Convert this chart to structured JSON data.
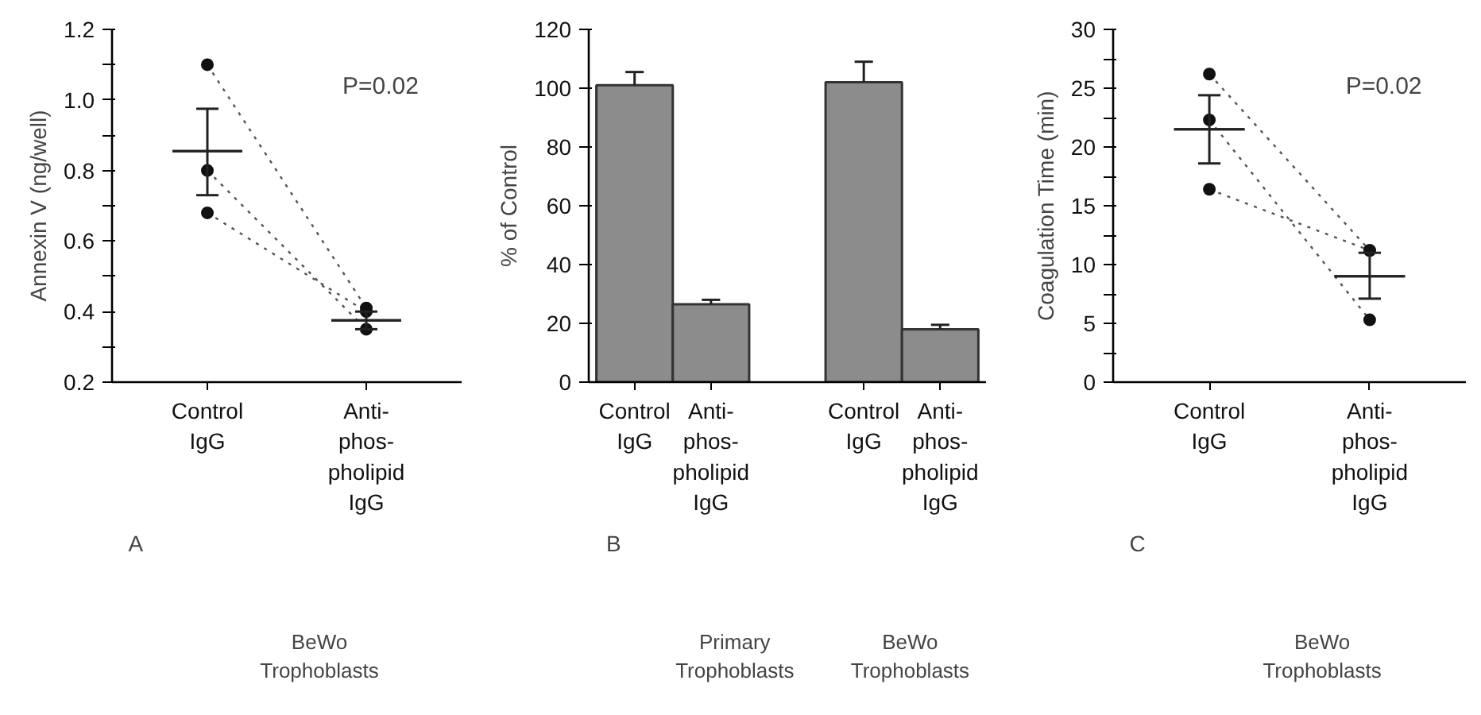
{
  "chart_data": [
    {
      "type": "line",
      "ylabel": "Annexin V (ng/well)",
      "categories": [
        "Control\nIgG",
        "Anti-\nphos-\npholipid\nIgG"
      ],
      "ylim": [
        0.2,
        1.2
      ],
      "yticks": [
        {
          "value": 0.2,
          "label": "0.2"
        },
        {
          "value": 0.3,
          "label": null
        },
        {
          "value": 0.4,
          "label": "0.4"
        },
        {
          "value": 0.5,
          "label": null
        },
        {
          "value": 0.6,
          "label": "0.6"
        },
        {
          "value": 0.7,
          "label": null
        },
        {
          "value": 0.8,
          "label": "0.8"
        },
        {
          "value": 0.9,
          "label": null
        },
        {
          "value": 1.0,
          "label": "1.0"
        },
        {
          "value": 1.1,
          "label": null
        },
        {
          "value": 1.2,
          "label": "1.2"
        }
      ],
      "marker": "circle",
      "line_style": "dotted",
      "grid": false,
      "series": [
        {
          "color": "#555555",
          "values": [
            1.1,
            0.41
          ]
        },
        {
          "color": "#555555",
          "values": [
            0.8,
            0.35
          ]
        },
        {
          "color": "#555555",
          "values": [
            0.68,
            0.4
          ]
        },
        {
          "type": "box",
          "color": "#222222",
          "boxes": [
            {
              "low": 0.73,
              "q1": 0.855,
              "median": 0.855,
              "q3": 0.855,
              "high": 0.975
            },
            {
              "low": 0.35,
              "q1": 0.375,
              "median": 0.375,
              "q3": 0.375,
              "high": 0.4
            }
          ]
        }
      ],
      "annotations": [
        "A",
        "P=0.02",
        "BeWo\nTrophoblasts"
      ]
    },
    {
      "type": "bar",
      "ylabel": "% of Control",
      "categories": [
        "Control\nIgG",
        "Anti-\nphos-\npholipid\nIgG",
        null,
        "Control\nIgG",
        "Anti-\nphos-\npholipid\nIgG"
      ],
      "ylim": [
        0,
        120
      ],
      "yticks": [
        0,
        20,
        40,
        60,
        80,
        100,
        120
      ],
      "grid": false,
      "series": [
        {
          "color": "#8c8c8c",
          "values": [
            101,
            26.5,
            null,
            102,
            18
          ],
          "errors": [
            4.5,
            1.5,
            null,
            7,
            1.5
          ]
        }
      ],
      "annotations": [
        "B",
        "Primary\nTrophoblasts",
        "BeWo\nTrophoblasts"
      ]
    },
    {
      "type": "line",
      "ylabel": "Coagulation Time (min)",
      "categories": [
        "Control\nIgG",
        "Anti-\nphos-\npholipid\nIgG"
      ],
      "ylim": [
        0,
        30
      ],
      "yticks": [
        0,
        {
          "value": 2.5,
          "label": null
        },
        5,
        {
          "value": 7.5,
          "label": null
        },
        10,
        {
          "value": 12.5,
          "label": null
        },
        15,
        {
          "value": 17.5,
          "label": null
        },
        20,
        {
          "value": 22.5,
          "label": null
        },
        25,
        {
          "value": 27.5,
          "label": null
        },
        30
      ],
      "marker": "circle",
      "line_style": "dotted",
      "grid": false,
      "series": [
        {
          "color": "#555555",
          "values": [
            26.2,
            11.2
          ]
        },
        {
          "color": "#555555",
          "values": [
            22.3,
            5.3
          ]
        },
        {
          "color": "#555555",
          "values": [
            16.4,
            11.2
          ]
        },
        {
          "type": "box",
          "color": "#222222",
          "boxes": [
            {
              "low": 18.6,
              "q1": 21.5,
              "median": 21.5,
              "q3": 21.5,
              "high": 24.4
            },
            {
              "low": 7.1,
              "q1": 9.0,
              "median": 9.0,
              "q3": 9.0,
              "high": 11.0
            }
          ]
        }
      ],
      "annotations": [
        "C",
        "P=0.02",
        "BeWo\nTrophoblasts"
      ]
    }
  ]
}
